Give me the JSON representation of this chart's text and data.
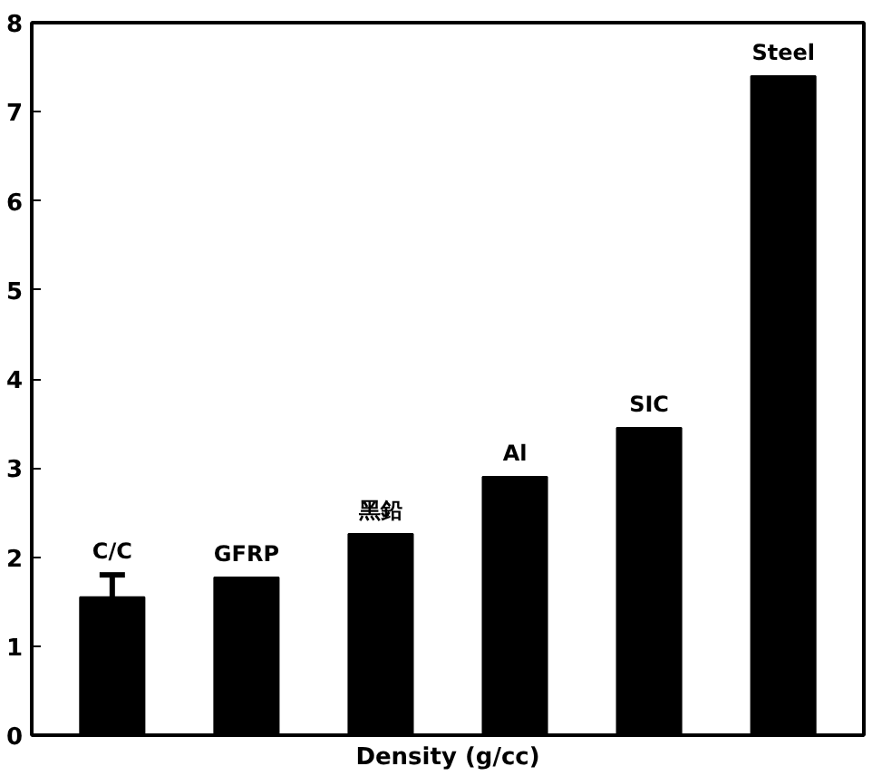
{
  "chart_data": {
    "type": "bar",
    "xlabel": "Density (g/cc)",
    "categories": [
      "C/C",
      "GFRP",
      "黑鉛",
      "Al",
      "SIC",
      "Steel"
    ],
    "values": [
      1.55,
      1.77,
      2.26,
      2.9,
      3.45,
      7.4
    ],
    "errors": [
      [
        1.55,
        1.8
      ],
      null,
      null,
      null,
      null,
      null
    ],
    "color": "#000000",
    "ylim": [
      0,
      8
    ],
    "yticks": [
      0,
      1,
      2,
      3,
      4,
      5,
      6,
      7,
      8
    ],
    "grid": false
  }
}
